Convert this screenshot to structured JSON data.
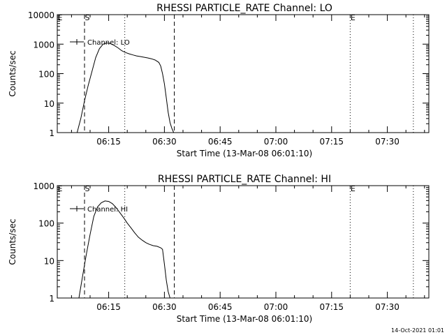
{
  "footer": {
    "timestamp": "14-Oct-2021 01:01"
  },
  "chart_data": [
    {
      "type": "line",
      "title": "RHESSI PARTICLE_RATE Channel: LO",
      "xlabel": "Start Time (13-Mar-08 06:01:10)",
      "ylabel": "Counts/sec",
      "yscale": "log",
      "ylim": [
        1,
        10000
      ],
      "xlim_minutes_label_range": [
        "06:01:10",
        "07:41:10"
      ],
      "x_ticks": [
        "06:15",
        "06:30",
        "06:45",
        "07:00",
        "07:15",
        "07:30"
      ],
      "y_ticks": [
        "1",
        "10",
        "100",
        "1000",
        "10000"
      ],
      "legend": "Channel: LO",
      "markers": [
        {
          "label": "S",
          "x": "06:08:30",
          "style": "dashed"
        },
        {
          "label": "",
          "x": "06:19:20",
          "style": "dotted"
        },
        {
          "label": "",
          "x": "06:32:40",
          "style": "dashed"
        },
        {
          "label": "E",
          "x": "07:20:00",
          "style": "dotted"
        },
        {
          "label": "",
          "x": "07:37:00",
          "style": "dotted"
        }
      ],
      "corner_label": "E",
      "series": [
        {
          "name": "Channel: LO",
          "x": [
            "06:06:30",
            "06:07:30",
            "06:08:30",
            "06:09:30",
            "06:10:30",
            "06:11:30",
            "06:12:30",
            "06:13:30",
            "06:14:30",
            "06:15:30",
            "06:16:30",
            "06:17:30",
            "06:18:30",
            "06:19:30",
            "06:20:30",
            "06:21:30",
            "06:22:30",
            "06:23:30",
            "06:24:30",
            "06:25:30",
            "06:26:30",
            "06:27:30",
            "06:28:30",
            "06:29:00",
            "06:29:30",
            "06:30:00",
            "06:30:30",
            "06:31:00",
            "06:31:30",
            "06:32:00",
            "06:32:30"
          ],
          "values": [
            1,
            3,
            12,
            40,
            120,
            350,
            700,
            1000,
            1100,
            1050,
            900,
            750,
            600,
            520,
            470,
            430,
            400,
            380,
            360,
            340,
            320,
            290,
            240,
            180,
            100,
            45,
            15,
            5,
            2.2,
            1.4,
            1
          ]
        }
      ]
    },
    {
      "type": "line",
      "title": "RHESSI PARTICLE_RATE Channel: HI",
      "xlabel": "Start Time (13-Mar-08 06:01:10)",
      "ylabel": "Counts/sec",
      "yscale": "log",
      "ylim": [
        1,
        1000
      ],
      "x_ticks": [
        "06:15",
        "06:30",
        "06:45",
        "07:00",
        "07:15",
        "07:30"
      ],
      "y_ticks": [
        "1",
        "10",
        "100",
        "1000"
      ],
      "legend": "Channel: HI",
      "markers": [
        {
          "label": "S",
          "x": "06:08:30",
          "style": "dashed"
        },
        {
          "label": "",
          "x": "06:19:20",
          "style": "dotted"
        },
        {
          "label": "",
          "x": "06:32:40",
          "style": "dashed"
        },
        {
          "label": "E",
          "x": "07:20:00",
          "style": "dotted"
        },
        {
          "label": "",
          "x": "07:37:00",
          "style": "dotted"
        }
      ],
      "corner_label": "E",
      "series": [
        {
          "name": "Channel: HI",
          "x": [
            "06:07:00",
            "06:08:00",
            "06:09:00",
            "06:10:00",
            "06:11:00",
            "06:12:00",
            "06:13:00",
            "06:14:00",
            "06:15:00",
            "06:16:00",
            "06:17:00",
            "06:18:00",
            "06:19:00",
            "06:20:00",
            "06:21:00",
            "06:22:00",
            "06:23:00",
            "06:24:00",
            "06:25:00",
            "06:26:00",
            "06:27:00",
            "06:28:00",
            "06:29:00",
            "06:29:30",
            "06:30:00",
            "06:30:30",
            "06:31:00",
            "06:31:30"
          ],
          "values": [
            1,
            4,
            15,
            50,
            150,
            270,
            350,
            390,
            380,
            330,
            260,
            190,
            140,
            100,
            75,
            55,
            42,
            35,
            30,
            27,
            25,
            24,
            22,
            20,
            8,
            3,
            1.5,
            1
          ]
        }
      ]
    }
  ]
}
